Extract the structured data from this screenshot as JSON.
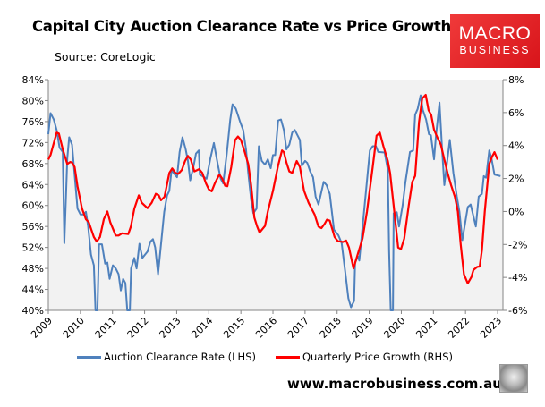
{
  "header": {
    "title": "Capital City Auction Clearance Rate vs Price Growth",
    "source": "Source: CoreLogic"
  },
  "logo": {
    "line1": "MACRO",
    "line2": "BUSINESS",
    "color": "#e3202a"
  },
  "footer": {
    "url": "www.macrobusiness.com.au",
    "icon": "wolf-logo-icon"
  },
  "chart_data": {
    "type": "line",
    "title": "Capital City Auction Clearance Rate vs Price Growth",
    "xlim": [
      2009,
      2023.2
    ],
    "x_ticks": [
      "2009",
      "2010",
      "2011",
      "2012",
      "2013",
      "2014",
      "2015",
      "2016",
      "2017",
      "2018",
      "2019",
      "2020",
      "2021",
      "2022",
      "2023"
    ],
    "y_left": {
      "ylim": [
        40,
        84
      ],
      "ticks": [
        "84%",
        "80%",
        "76%",
        "72%",
        "68%",
        "64%",
        "60%",
        "56%",
        "52%",
        "48%",
        "44%",
        "40%"
      ]
    },
    "y_right": {
      "ylim": [
        -6,
        8
      ],
      "ticks": [
        "8%",
        "6%",
        "4%",
        "2%",
        "0%",
        "-2%",
        "-4%",
        "-6%"
      ]
    },
    "grid": false,
    "legend_position": "bottom",
    "series": [
      {
        "name": "Auction Clearance Rate (LHS)",
        "axis": "left",
        "color": "#4f81bd",
        "x": [
          2009.0,
          2009.07,
          2009.17,
          2009.26,
          2009.35,
          2009.45,
          2009.5,
          2009.59,
          2009.65,
          2009.74,
          2009.91,
          2010.0,
          2010.1,
          2010.17,
          2010.24,
          2010.33,
          2010.42,
          2010.47,
          2010.53,
          2010.58,
          2010.67,
          2010.77,
          2010.84,
          2010.91,
          2011.01,
          2011.1,
          2011.19,
          2011.26,
          2011.33,
          2011.4,
          2011.46,
          2011.54,
          2011.58,
          2011.68,
          2011.75,
          2011.84,
          2011.93,
          2012.09,
          2012.18,
          2012.26,
          2012.33,
          2012.42,
          2012.51,
          2012.61,
          2012.7,
          2012.77,
          2012.84,
          2012.9,
          2013.01,
          2013.09,
          2013.18,
          2013.28,
          2013.35,
          2013.42,
          2013.52,
          2013.6,
          2013.69,
          2013.72,
          2013.86,
          2013.93,
          2014.05,
          2014.16,
          2014.28,
          2014.37,
          2014.45,
          2014.56,
          2014.67,
          2014.74,
          2014.84,
          2014.98,
          2015.07,
          2015.16,
          2015.23,
          2015.32,
          2015.39,
          2015.49,
          2015.56,
          2015.65,
          2015.75,
          2015.84,
          2015.93,
          2016.0,
          2016.07,
          2016.16,
          2016.25,
          2016.34,
          2016.42,
          2016.51,
          2016.6,
          2016.68,
          2016.84,
          2016.9,
          2017.0,
          2017.07,
          2017.16,
          2017.25,
          2017.33,
          2017.42,
          2017.58,
          2017.67,
          2017.77,
          2017.9,
          2018.04,
          2018.14,
          2018.26,
          2018.35,
          2018.43,
          2018.53,
          2018.56,
          2018.65,
          2018.69,
          2018.83,
          2019.02,
          2019.11,
          2019.21,
          2019.28,
          2019.48,
          2019.58,
          2019.62,
          2019.67,
          2019.74,
          2019.76,
          2019.86,
          2019.93,
          2020.04,
          2020.13,
          2020.27,
          2020.37,
          2020.43,
          2020.51,
          2020.6,
          2020.67,
          2020.77,
          2020.86,
          2020.92,
          2021.02,
          2021.08,
          2021.19,
          2021.27,
          2021.34,
          2021.44,
          2021.51,
          2021.62,
          2021.73,
          2021.81,
          2021.9,
          2022.0,
          2022.07,
          2022.16,
          2022.32,
          2022.41,
          2022.51,
          2022.57,
          2022.64,
          2022.74,
          2022.81,
          2022.9,
          2023.09
        ],
        "values": [
          73.6,
          77.6,
          76.4,
          74.4,
          71.0,
          70.2,
          52.8,
          69.0,
          73.0,
          71.6,
          59.4,
          58.3,
          58.3,
          58.8,
          56.0,
          50.6,
          48.6,
          40.0,
          40.0,
          52.6,
          52.6,
          48.9,
          49.1,
          46.0,
          48.6,
          48.0,
          46.9,
          43.8,
          46.0,
          45.2,
          40.0,
          40.0,
          48.0,
          50.0,
          48.0,
          52.7,
          50.0,
          51.2,
          53.1,
          53.6,
          52.0,
          46.9,
          52.6,
          58.8,
          61.9,
          62.8,
          66.8,
          66.2,
          65.4,
          70.2,
          73.0,
          70.7,
          68.5,
          64.8,
          67.3,
          69.9,
          70.5,
          65.9,
          65.4,
          65.1,
          69.0,
          71.9,
          67.9,
          65.1,
          64.2,
          69.9,
          76.4,
          79.3,
          78.5,
          75.9,
          74.4,
          70.7,
          66.2,
          61.1,
          58.5,
          59.4,
          71.3,
          68.5,
          67.8,
          68.8,
          67.1,
          69.6,
          69.6,
          76.2,
          76.4,
          74.4,
          70.7,
          71.6,
          73.9,
          74.4,
          72.5,
          67.6,
          68.5,
          68.1,
          66.5,
          65.4,
          61.7,
          60.2,
          64.5,
          63.9,
          62.2,
          55.4,
          54.3,
          52.8,
          46.9,
          42.3,
          40.6,
          41.8,
          49.1,
          50.3,
          49.5,
          58.3,
          70.5,
          71.3,
          71.3,
          70.2,
          70.1,
          66.8,
          51.4,
          40.0,
          40.0,
          58.5,
          58.7,
          56.0,
          60.0,
          64.5,
          70.2,
          70.5,
          77.3,
          78.4,
          81.0,
          78.2,
          76.4,
          73.6,
          73.4,
          68.8,
          73.4,
          79.6,
          70.7,
          63.9,
          69.0,
          72.5,
          66.2,
          61.7,
          58.8,
          53.4,
          57.1,
          59.7,
          60.2,
          56.0,
          61.7,
          62.2,
          65.6,
          65.3,
          70.5,
          69.0,
          65.9,
          65.6
        ]
      },
      {
        "name": "Quarterly Price Growth (RHS)",
        "axis": "right",
        "color": "#ff0000",
        "x": [
          2009.0,
          2009.07,
          2009.26,
          2009.33,
          2009.45,
          2009.59,
          2009.68,
          2009.74,
          2009.82,
          2009.91,
          2010.05,
          2010.17,
          2010.26,
          2010.42,
          2010.51,
          2010.61,
          2010.73,
          2010.84,
          2010.93,
          2011.1,
          2011.19,
          2011.3,
          2011.49,
          2011.57,
          2011.68,
          2011.82,
          2011.91,
          2012.09,
          2012.22,
          2012.35,
          2012.44,
          2012.51,
          2012.62,
          2012.77,
          2012.86,
          2012.96,
          2013.05,
          2013.16,
          2013.26,
          2013.35,
          2013.44,
          2013.55,
          2013.7,
          2013.8,
          2013.91,
          2014.0,
          2014.09,
          2014.19,
          2014.33,
          2014.42,
          2014.51,
          2014.58,
          2014.7,
          2014.82,
          2014.91,
          2015.0,
          2015.12,
          2015.23,
          2015.32,
          2015.42,
          2015.51,
          2015.58,
          2015.75,
          2015.84,
          2016.0,
          2016.16,
          2016.28,
          2016.34,
          2016.42,
          2016.51,
          2016.6,
          2016.74,
          2016.84,
          2016.97,
          2017.11,
          2017.3,
          2017.42,
          2017.51,
          2017.61,
          2017.68,
          2017.77,
          2017.92,
          2018.02,
          2018.18,
          2018.28,
          2018.37,
          2018.51,
          2018.65,
          2018.79,
          2018.93,
          2019.11,
          2019.23,
          2019.33,
          2019.44,
          2019.58,
          2019.65,
          2019.76,
          2019.9,
          2019.99,
          2020.09,
          2020.23,
          2020.34,
          2020.43,
          2020.55,
          2020.65,
          2020.76,
          2020.85,
          2020.93,
          2021.02,
          2021.14,
          2021.23,
          2021.34,
          2021.44,
          2021.55,
          2021.67,
          2021.76,
          2021.85,
          2021.95,
          2022.07,
          2022.18,
          2022.25,
          2022.37,
          2022.44,
          2022.51,
          2022.6,
          2022.74,
          2022.83,
          2022.9,
          2023.0
        ],
        "values": [
          3.15,
          3.43,
          4.78,
          4.73,
          3.78,
          2.88,
          3.0,
          2.97,
          2.7,
          1.53,
          0.17,
          -0.47,
          -0.65,
          -1.55,
          -1.82,
          -1.55,
          -0.47,
          0.0,
          -0.65,
          -1.46,
          -1.46,
          -1.32,
          -1.37,
          -0.92,
          0.17,
          0.98,
          0.53,
          0.2,
          0.53,
          1.07,
          0.98,
          0.68,
          0.89,
          2.34,
          2.61,
          2.34,
          2.28,
          2.52,
          3.06,
          3.37,
          3.15,
          2.43,
          2.57,
          2.34,
          1.71,
          1.34,
          1.22,
          1.71,
          2.25,
          1.98,
          1.56,
          1.53,
          2.7,
          4.33,
          4.55,
          4.33,
          3.6,
          2.88,
          1.62,
          -0.37,
          -0.92,
          -1.28,
          -0.88,
          0.0,
          1.25,
          2.79,
          3.7,
          3.6,
          2.97,
          2.43,
          2.34,
          3.06,
          2.7,
          1.25,
          0.53,
          -0.19,
          -0.92,
          -1.01,
          -0.74,
          -0.5,
          -0.56,
          -1.55,
          -1.8,
          -1.85,
          -1.76,
          -2.19,
          -3.45,
          -2.55,
          -1.64,
          0.0,
          2.7,
          4.6,
          4.78,
          3.97,
          3.06,
          2.34,
          0.35,
          -2.19,
          -2.28,
          -1.64,
          0.35,
          1.8,
          2.16,
          5.41,
          6.86,
          7.08,
          6.14,
          5.87,
          4.96,
          4.42,
          4.06,
          3.15,
          2.34,
          1.61,
          0.89,
          0.0,
          -2.0,
          -3.81,
          -4.36,
          -3.99,
          -3.54,
          -3.36,
          -3.34,
          -2.36,
          0.0,
          2.88,
          3.33,
          3.6,
          3.15
        ]
      }
    ]
  }
}
